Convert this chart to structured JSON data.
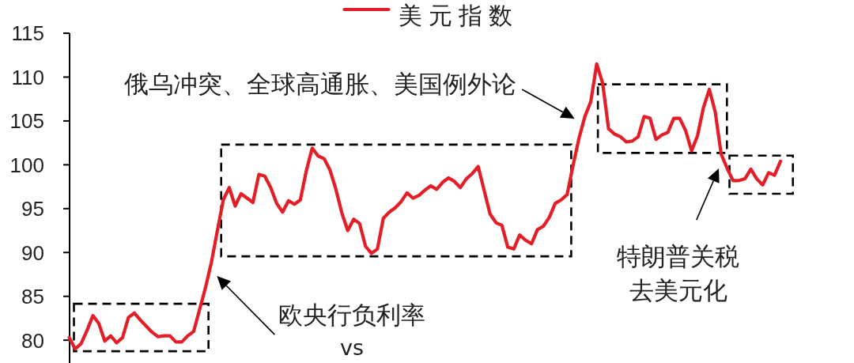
{
  "chart_data": {
    "type": "line",
    "categories": [
      null,
      null,
      null,
      null,
      null,
      null,
      null,
      null,
      null,
      null,
      null,
      null,
      null,
      null,
      null,
      null,
      null,
      null,
      null,
      null,
      null,
      null,
      null,
      null,
      null,
      null,
      null,
      null,
      null,
      null,
      null,
      null,
      null,
      null,
      null,
      null,
      null,
      null,
      null,
      null,
      null,
      null,
      null,
      null,
      null,
      null,
      null,
      null,
      null,
      null,
      null,
      null,
      null,
      null,
      null,
      null,
      null,
      null,
      null,
      null,
      null,
      null,
      null,
      null,
      null,
      null,
      null,
      null,
      null,
      null,
      null,
      null,
      null,
      null,
      null,
      null,
      null,
      null,
      null,
      null,
      null,
      null,
      null,
      null,
      null,
      null,
      null,
      null,
      null,
      null,
      null,
      null,
      null,
      null,
      null,
      null,
      null,
      null,
      null,
      null,
      null,
      null,
      null,
      null,
      null,
      null,
      null,
      null,
      null,
      null,
      null,
      null,
      null,
      null,
      null,
      null,
      null,
      null,
      null,
      null,
      null
    ],
    "series": [
      {
        "name": "美元指数",
        "color": "#e41e26",
        "values": [
          80.3,
          79.0,
          79.6,
          81.1,
          82.8,
          81.9,
          79.9,
          80.5,
          79.7,
          80.3,
          82.6,
          83.1,
          82.3,
          81.6,
          80.9,
          80.4,
          80.5,
          80.5,
          79.8,
          79.8,
          80.5,
          81.0,
          83.5,
          86.0,
          88.9,
          92.5,
          96.0,
          97.4,
          95.3,
          96.7,
          96.2,
          95.7,
          98.9,
          98.7,
          97.4,
          95.6,
          94.6,
          95.9,
          95.5,
          96.0,
          99.3,
          101.9,
          101.0,
          100.7,
          99.4,
          97.2,
          94.5,
          92.5,
          93.8,
          93.3,
          90.7,
          89.9,
          90.4,
          93.9,
          94.6,
          95.1,
          95.8,
          96.8,
          96.2,
          96.5,
          97.1,
          97.6,
          97.2,
          98.0,
          98.5,
          98.1,
          97.4,
          98.4,
          99.0,
          99.8,
          97.1,
          94.4,
          93.4,
          93.1,
          90.6,
          90.4,
          92.0,
          91.4,
          91.0,
          92.6,
          93.0,
          94.0,
          95.6,
          96.0,
          96.6,
          99.9,
          103.0,
          105.5,
          107.2,
          111.5,
          109.3,
          104.1,
          103.5,
          103.2,
          102.6,
          102.7,
          103.2,
          105.5,
          105.3,
          102.9,
          103.4,
          103.7,
          105.3,
          105.3,
          103.9,
          101.6,
          103.3,
          106.5,
          108.6,
          106.0,
          101.2,
          99.6,
          98.2,
          98.2,
          98.4,
          99.5,
          98.4,
          97.7,
          99.1,
          98.8,
          100.4
        ]
      }
    ],
    "ylim": [
      77.4,
      115
    ],
    "yticks": [
      80,
      85,
      90,
      95,
      100,
      105,
      110,
      115
    ],
    "tick_labels": "y",
    "legend": "top",
    "line_style": "solid",
    "annotations": [
      "俄乌冲突、全球高通胀、美国例外论",
      "欧央行负利率",
      "vs",
      "特朗普关税",
      "去美元化"
    ]
  }
}
